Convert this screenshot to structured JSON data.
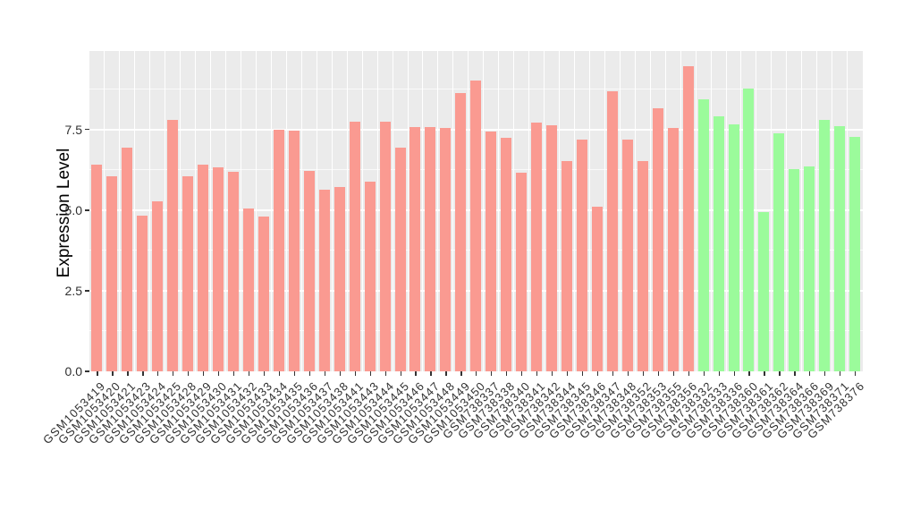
{
  "chart_data": {
    "type": "bar",
    "title": "",
    "xlabel": "",
    "ylabel": "Expression Level",
    "ylim": [
      0,
      9.94
    ],
    "yticks": [
      {
        "value": 0.0,
        "label": "0.0"
      },
      {
        "value": 2.5,
        "label": "2.5"
      },
      {
        "value": 5.0,
        "label": "5.0"
      },
      {
        "value": 7.5,
        "label": "7.5"
      }
    ],
    "minor_gridlines": [
      1.25,
      3.75,
      6.25,
      8.75
    ],
    "grid": "white major+minor gridlines on gray panel",
    "legend_position": "none",
    "colors": {
      "red_group": "#FA9A91",
      "green_group": "#9BFB9B",
      "panel_bg": "#EBEBEB",
      "gridline": "#FFFFFF",
      "tick": "#333333"
    },
    "groups": [
      {
        "name": "red-samples",
        "color_key": "red_group",
        "count": 40
      },
      {
        "name": "green-samples",
        "color_key": "green_group",
        "count": 11
      }
    ],
    "bars": [
      {
        "label": "GSM1053419",
        "value": 6.42,
        "group": "red_group"
      },
      {
        "label": "GSM1053420",
        "value": 6.06,
        "group": "red_group"
      },
      {
        "label": "GSM1053421",
        "value": 6.93,
        "group": "red_group"
      },
      {
        "label": "GSM1053423",
        "value": 4.83,
        "group": "red_group"
      },
      {
        "label": "GSM1053424",
        "value": 5.28,
        "group": "red_group"
      },
      {
        "label": "GSM1053425",
        "value": 7.8,
        "group": "red_group"
      },
      {
        "label": "GSM1053428",
        "value": 6.06,
        "group": "red_group"
      },
      {
        "label": "GSM1053429",
        "value": 6.42,
        "group": "red_group"
      },
      {
        "label": "GSM1053430",
        "value": 6.32,
        "group": "red_group"
      },
      {
        "label": "GSM1053431",
        "value": 6.19,
        "group": "red_group"
      },
      {
        "label": "GSM1053432",
        "value": 5.05,
        "group": "red_group"
      },
      {
        "label": "GSM1053433",
        "value": 4.81,
        "group": "red_group"
      },
      {
        "label": "GSM1053434",
        "value": 7.5,
        "group": "red_group"
      },
      {
        "label": "GSM1053435",
        "value": 7.46,
        "group": "red_group"
      },
      {
        "label": "GSM1053436",
        "value": 6.22,
        "group": "red_group"
      },
      {
        "label": "GSM1053437",
        "value": 5.65,
        "group": "red_group"
      },
      {
        "label": "GSM1053438",
        "value": 5.71,
        "group": "red_group"
      },
      {
        "label": "GSM1053441",
        "value": 7.75,
        "group": "red_group"
      },
      {
        "label": "GSM1053443",
        "value": 5.88,
        "group": "red_group"
      },
      {
        "label": "GSM1053444",
        "value": 7.75,
        "group": "red_group"
      },
      {
        "label": "GSM1053445",
        "value": 6.94,
        "group": "red_group"
      },
      {
        "label": "GSM1053446",
        "value": 7.59,
        "group": "red_group"
      },
      {
        "label": "GSM1053447",
        "value": 7.59,
        "group": "red_group"
      },
      {
        "label": "GSM1053448",
        "value": 7.56,
        "group": "red_group"
      },
      {
        "label": "GSM1053449",
        "value": 8.63,
        "group": "red_group"
      },
      {
        "label": "GSM1053450",
        "value": 9.03,
        "group": "red_group"
      },
      {
        "label": "GSM738337",
        "value": 7.44,
        "group": "red_group"
      },
      {
        "label": "GSM738338",
        "value": 7.24,
        "group": "red_group"
      },
      {
        "label": "GSM738340",
        "value": 6.16,
        "group": "red_group"
      },
      {
        "label": "GSM738341",
        "value": 7.73,
        "group": "red_group"
      },
      {
        "label": "GSM738342",
        "value": 7.64,
        "group": "red_group"
      },
      {
        "label": "GSM738344",
        "value": 6.53,
        "group": "red_group"
      },
      {
        "label": "GSM738345",
        "value": 7.2,
        "group": "red_group"
      },
      {
        "label": "GSM738346",
        "value": 5.11,
        "group": "red_group"
      },
      {
        "label": "GSM738347",
        "value": 8.69,
        "group": "red_group"
      },
      {
        "label": "GSM738348",
        "value": 7.19,
        "group": "red_group"
      },
      {
        "label": "GSM738352",
        "value": 6.53,
        "group": "red_group"
      },
      {
        "label": "GSM738353",
        "value": 8.15,
        "group": "red_group"
      },
      {
        "label": "GSM738355",
        "value": 7.56,
        "group": "red_group"
      },
      {
        "label": "GSM738356",
        "value": 9.47,
        "group": "red_group"
      },
      {
        "label": "GSM738332",
        "value": 8.43,
        "group": "green_group"
      },
      {
        "label": "GSM738333",
        "value": 7.9,
        "group": "green_group"
      },
      {
        "label": "GSM738336",
        "value": 7.66,
        "group": "green_group"
      },
      {
        "label": "GSM738360",
        "value": 8.78,
        "group": "green_group"
      },
      {
        "label": "GSM738361",
        "value": 4.93,
        "group": "green_group"
      },
      {
        "label": "GSM738362",
        "value": 7.39,
        "group": "green_group"
      },
      {
        "label": "GSM738364",
        "value": 6.28,
        "group": "green_group"
      },
      {
        "label": "GSM738366",
        "value": 6.36,
        "group": "green_group"
      },
      {
        "label": "GSM738369",
        "value": 7.81,
        "group": "green_group"
      },
      {
        "label": "GSM738371",
        "value": 7.62,
        "group": "green_group"
      },
      {
        "label": "GSM738376",
        "value": 7.27,
        "group": "green_group"
      }
    ]
  }
}
